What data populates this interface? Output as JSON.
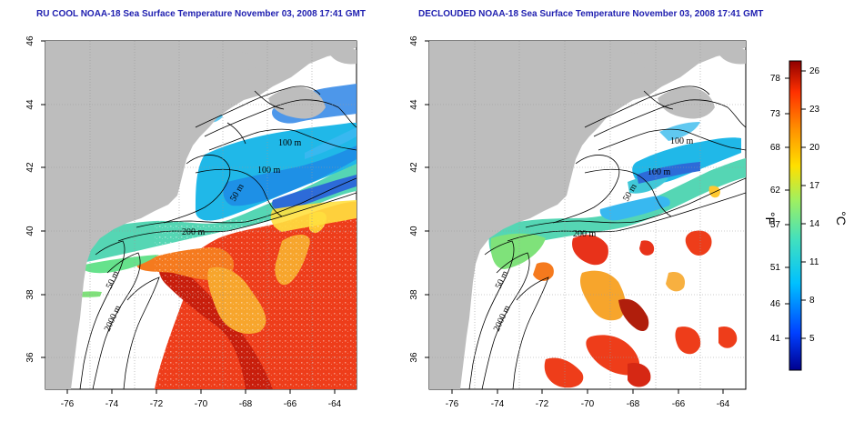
{
  "titles": {
    "left": "RU COOL NOAA-18 Sea Surface Temperature November 03, 2008 17:41 GMT",
    "right": "DECLOUDED NOAA-18 Sea Surface Temperature November 03, 2008 17:41 GMT"
  },
  "axes": {
    "longitude_ticks": [
      "-76",
      "-74",
      "-72",
      "-70",
      "-68",
      "-66",
      "-64"
    ],
    "latitude_ticks": [
      "46",
      "44",
      "42",
      "40",
      "38",
      "36"
    ],
    "lon_range": [
      -77,
      -63
    ],
    "lat_range": [
      35,
      46
    ]
  },
  "contour_labels": {
    "left": [
      "100 m",
      "100 m",
      "50 m",
      "200 m",
      "50 m",
      "2000 m"
    ],
    "right": [
      "100 m",
      "100 m",
      "50 m",
      "200 m",
      "50 m",
      "2000 m"
    ]
  },
  "colorbar": {
    "fahrenheit_ticks": [
      "78",
      "73",
      "68",
      "62",
      "57",
      "51",
      "46",
      "41"
    ],
    "celsius_ticks": [
      "26",
      "23",
      "20",
      "17",
      "14",
      "11",
      "8",
      "5"
    ],
    "fahrenheit_unit": "°F",
    "celsius_unit": "°C",
    "colors": [
      "#00008f",
      "#0040ff",
      "#00c0ff",
      "#40e0c0",
      "#a0f060",
      "#ffe000",
      "#ff9000",
      "#ff3000",
      "#8f0000"
    ]
  },
  "colors": {
    "land": "#bdbdbd",
    "ocean": "#ffffff",
    "title": "#2020b0"
  }
}
